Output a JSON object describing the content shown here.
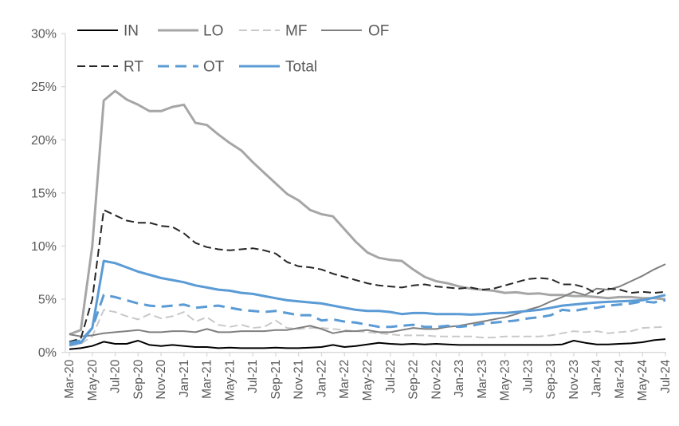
{
  "chart_data": {
    "type": "line",
    "title": "",
    "xlabel": "",
    "ylabel": "",
    "ylim": [
      0,
      30
    ],
    "grid": "off",
    "legend_position": "top",
    "axis_text_color": "#595959",
    "axis_line_color": "#d9d9d9",
    "y_tick_labels": [
      "0%",
      "5%",
      "10%",
      "15%",
      "20%",
      "25%",
      "30%"
    ],
    "x_tick_labels": [
      "Mar-20",
      "May-20",
      "Jul-20",
      "Sep-20",
      "Nov-20",
      "Jan-21",
      "Mar-21",
      "May-21",
      "Jul-21",
      "Sep-21",
      "Nov-21",
      "Jan-22",
      "Mar-22",
      "May-22",
      "Jul-22",
      "Sep-22",
      "Nov-22",
      "Jan-23",
      "Mar-23",
      "May-23",
      "Jul-23",
      "Sep-23",
      "Nov-23",
      "Jan-24",
      "Mar-24",
      "May-24",
      "Jul-24",
      ""
    ],
    "x_resolution": "monthly (53 points, Mar-20 to Jul-24; tick labels every 2nd month)",
    "series": [
      {
        "name": "IN",
        "color": "#000000",
        "dash": "none",
        "width": 2,
        "z": 6,
        "values": [
          0.3,
          0.4,
          0.6,
          1.0,
          0.8,
          0.8,
          1.1,
          0.7,
          0.6,
          0.7,
          0.6,
          0.5,
          0.5,
          0.4,
          0.45,
          0.4,
          0.4,
          0.4,
          0.45,
          0.4,
          0.4,
          0.45,
          0.5,
          0.7,
          0.5,
          0.6,
          0.75,
          0.9,
          0.8,
          0.75,
          0.8,
          0.75,
          0.8,
          0.75,
          0.7,
          0.7,
          0.7,
          0.7,
          0.7,
          0.7,
          0.7,
          0.7,
          0.7,
          0.75,
          1.1,
          0.9,
          0.75,
          0.75,
          0.8,
          0.85,
          0.95,
          1.15,
          1.25
        ]
      },
      {
        "name": "LO",
        "color": "#a6a6a6",
        "dash": "none",
        "width": 3,
        "z": 0,
        "values": [
          1.7,
          2.1,
          10.0,
          23.7,
          24.6,
          23.8,
          23.3,
          22.7,
          22.7,
          23.1,
          23.3,
          21.6,
          21.4,
          20.5,
          19.7,
          19.0,
          17.9,
          16.9,
          15.9,
          14.9,
          14.3,
          13.4,
          13.0,
          12.8,
          11.6,
          10.4,
          9.4,
          8.9,
          8.7,
          8.6,
          7.8,
          7.1,
          6.7,
          6.5,
          6.2,
          6.0,
          5.9,
          5.8,
          5.6,
          5.65,
          5.5,
          5.55,
          5.4,
          5.4,
          5.3,
          5.3,
          5.2,
          5.1,
          5.2,
          5.2,
          5.1,
          5.1,
          5.0
        ]
      },
      {
        "name": "MF",
        "color": "#c9c9c9",
        "dash": "10 5",
        "width": 2,
        "z": 1,
        "values": [
          0.6,
          0.8,
          1.5,
          4.0,
          3.8,
          3.4,
          3.1,
          3.6,
          3.2,
          3.4,
          3.8,
          2.9,
          3.3,
          2.6,
          2.4,
          2.6,
          2.3,
          2.4,
          3.0,
          2.3,
          2.2,
          2.3,
          2.3,
          2.2,
          2.1,
          2.0,
          1.9,
          1.8,
          1.7,
          1.6,
          1.6,
          1.6,
          1.5,
          1.5,
          1.5,
          1.5,
          1.4,
          1.4,
          1.5,
          1.5,
          1.5,
          1.5,
          1.6,
          1.8,
          2.0,
          1.9,
          2.0,
          1.8,
          1.9,
          2.0,
          2.3,
          2.35,
          2.4
        ]
      },
      {
        "name": "OF",
        "color": "#7f7f7f",
        "dash": "none",
        "width": 2,
        "z": 2,
        "values": [
          1.7,
          1.5,
          1.6,
          1.8,
          1.9,
          2.0,
          2.1,
          1.9,
          1.9,
          2.0,
          2.0,
          1.9,
          2.2,
          1.9,
          1.9,
          2.0,
          2.0,
          2.0,
          2.1,
          2.1,
          2.3,
          2.5,
          2.2,
          1.8,
          2.0,
          2.0,
          2.1,
          1.9,
          1.9,
          2.1,
          2.3,
          2.2,
          2.2,
          2.4,
          2.5,
          2.7,
          2.9,
          3.1,
          3.3,
          3.6,
          4.0,
          4.3,
          4.8,
          5.2,
          5.7,
          5.4,
          6.0,
          5.9,
          6.2,
          6.7,
          7.2,
          7.8,
          8.3
        ]
      },
      {
        "name": "RT",
        "color": "#262626",
        "dash": "10 5",
        "width": 2,
        "z": 3,
        "values": [
          1.0,
          1.3,
          5.0,
          13.4,
          12.9,
          12.4,
          12.2,
          12.2,
          11.9,
          11.8,
          11.2,
          10.3,
          9.9,
          9.7,
          9.6,
          9.7,
          9.8,
          9.6,
          9.3,
          8.5,
          8.1,
          8.0,
          7.8,
          7.4,
          7.1,
          6.8,
          6.5,
          6.3,
          6.2,
          6.1,
          6.3,
          6.4,
          6.2,
          6.1,
          6.0,
          6.1,
          5.9,
          6.0,
          6.3,
          6.6,
          6.9,
          7.0,
          6.9,
          6.4,
          6.4,
          6.1,
          5.5,
          6.0,
          5.9,
          5.6,
          5.7,
          5.6,
          5.7
        ]
      },
      {
        "name": "OT",
        "color": "#5b9bd5",
        "dash": "14 8",
        "width": 3,
        "z": 4,
        "values": [
          0.9,
          1.1,
          2.3,
          5.4,
          5.2,
          4.9,
          4.6,
          4.4,
          4.3,
          4.4,
          4.5,
          4.2,
          4.3,
          4.4,
          4.2,
          4.0,
          3.9,
          3.8,
          3.9,
          3.7,
          3.5,
          3.5,
          3.0,
          3.1,
          2.9,
          2.8,
          2.6,
          2.4,
          2.4,
          2.5,
          2.6,
          2.4,
          2.4,
          2.5,
          2.4,
          2.5,
          2.7,
          2.8,
          2.9,
          3.0,
          3.2,
          3.3,
          3.5,
          4.0,
          3.9,
          4.1,
          4.2,
          4.4,
          4.5,
          4.6,
          4.8,
          4.7,
          4.9
        ]
      },
      {
        "name": "Total",
        "color": "#5b9bd5",
        "dash": "none",
        "width": 3,
        "z": 5,
        "values": [
          0.7,
          0.9,
          2.3,
          8.6,
          8.4,
          8.0,
          7.6,
          7.3,
          7.0,
          6.8,
          6.6,
          6.3,
          6.1,
          5.9,
          5.8,
          5.6,
          5.5,
          5.3,
          5.1,
          4.9,
          4.8,
          4.7,
          4.6,
          4.4,
          4.2,
          4.0,
          3.9,
          3.9,
          3.8,
          3.6,
          3.7,
          3.7,
          3.6,
          3.6,
          3.6,
          3.55,
          3.6,
          3.7,
          3.7,
          3.8,
          3.9,
          4.0,
          4.2,
          4.4,
          4.5,
          4.6,
          4.7,
          4.75,
          4.8,
          4.85,
          4.9,
          5.15,
          5.4
        ]
      }
    ]
  },
  "legend": {
    "rows": [
      [
        "IN",
        "LO",
        "MF",
        "OF"
      ],
      [
        "RT",
        "OT",
        "Total"
      ]
    ],
    "labels": {
      "IN": "IN",
      "LO": "LO",
      "MF": "MF",
      "OF": "OF",
      "RT": "RT",
      "OT": "OT",
      "Total": "Total"
    }
  }
}
